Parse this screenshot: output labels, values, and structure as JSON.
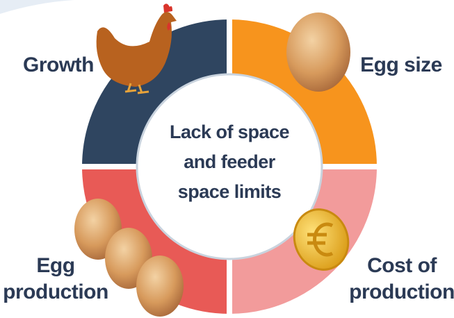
{
  "center": {
    "lines": [
      "Lack of space",
      "and feeder",
      "space limits"
    ]
  },
  "labels": {
    "top_left": {
      "lines": [
        "Growth"
      ]
    },
    "top_right": {
      "lines": [
        "Egg size"
      ]
    },
    "bottom_left": {
      "lines": [
        "Egg",
        "production"
      ]
    },
    "bottom_right": {
      "lines": [
        "Cost of",
        "production"
      ]
    }
  }
}
